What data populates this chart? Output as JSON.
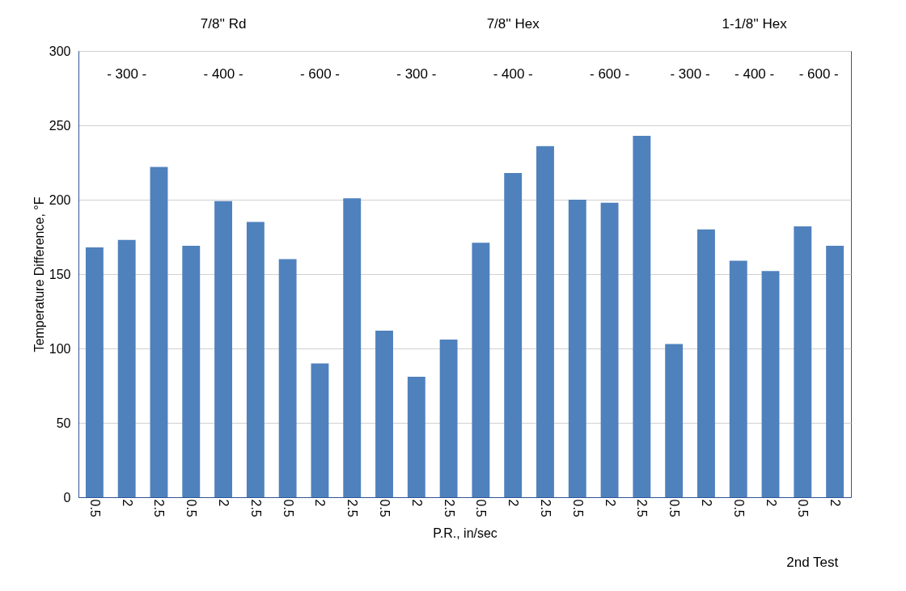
{
  "chart_data": {
    "type": "bar",
    "xlabel": "P.R., in/sec",
    "ylabel": "Temperature Difference, °F",
    "categories": [
      "0.5",
      "2",
      "2.5",
      "0.5",
      "2",
      "2.5",
      "0.5",
      "2",
      "2.5",
      "0.5",
      "2",
      "2.5",
      "0.5",
      "2",
      "2.5",
      "0.5",
      "2",
      "2.5",
      "0.5",
      "2",
      "0.5",
      "2",
      "0.5",
      "2"
    ],
    "values": [
      168,
      173,
      222,
      169,
      199,
      185,
      160,
      90,
      201,
      112,
      81,
      106,
      171,
      218,
      236,
      200,
      198,
      243,
      103,
      180,
      159,
      152,
      182,
      169
    ],
    "color": "#4f81bd",
    "ylim": [
      0,
      300
    ],
    "yticks": [
      0,
      50,
      100,
      150,
      200,
      250,
      300
    ],
    "grid": "y",
    "annotations": [
      "7/8'' Rd",
      "7/8'' Hex",
      "1-1/8'' Hex",
      "- 300 -",
      "- 400 -",
      "- 600 -",
      "- 300 -",
      "- 400 -",
      "- 600 -",
      "- 300 -",
      "- 400 -",
      "- 600 -",
      "2nd Test"
    ]
  }
}
